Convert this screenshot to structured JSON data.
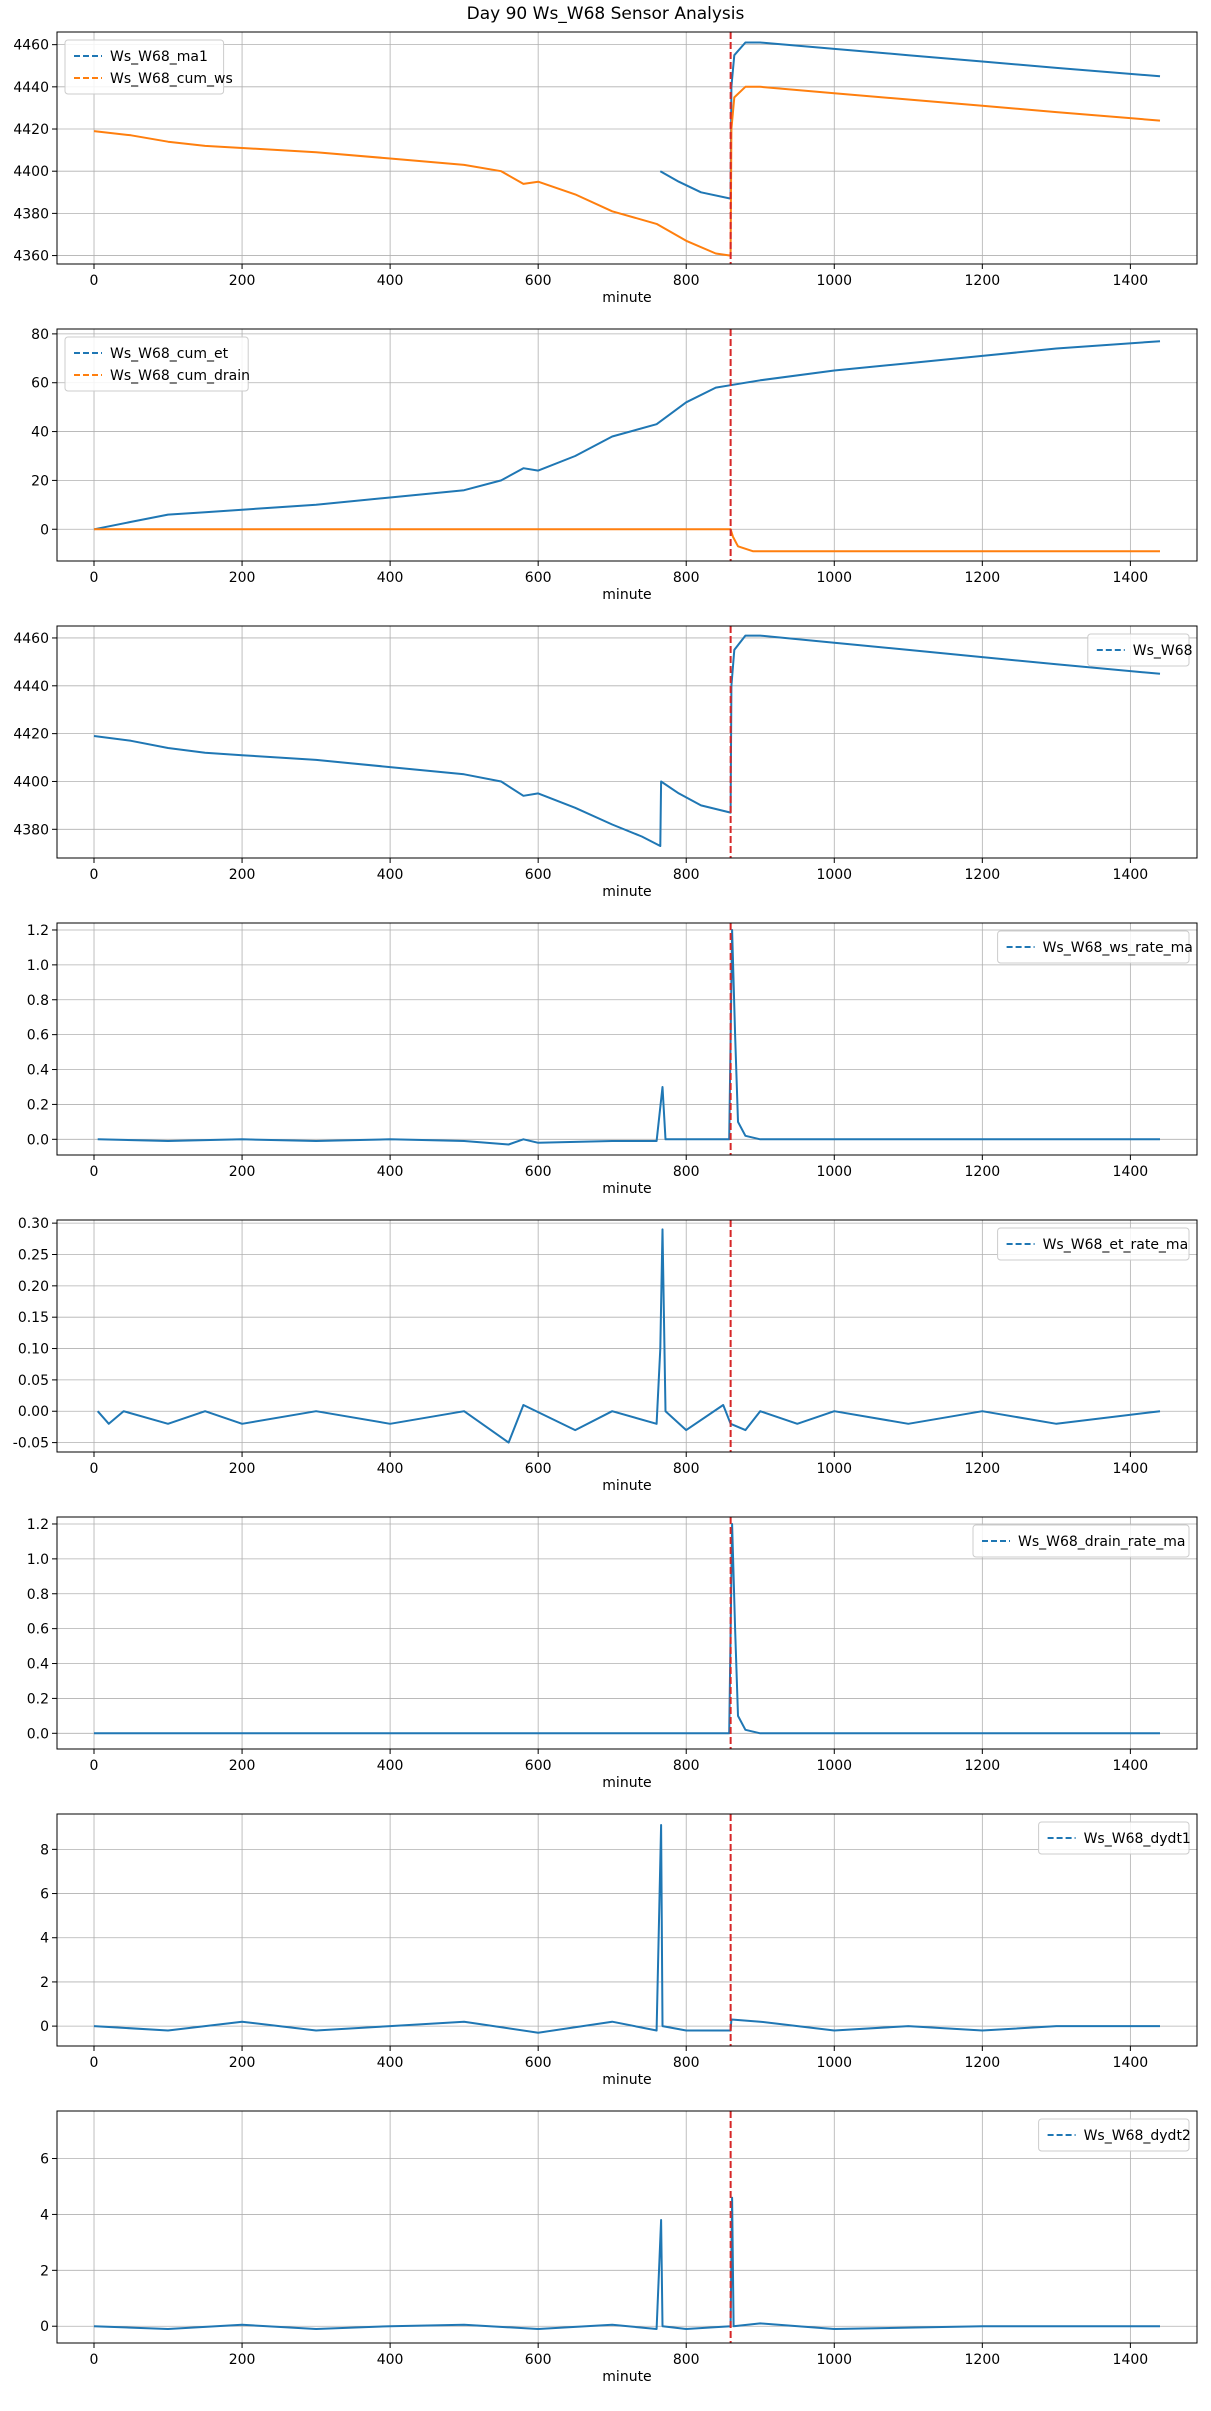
{
  "figure": {
    "title": "Day 90 Ws_W68 Sensor Analysis"
  },
  "colors": {
    "blue": "#1f77b4",
    "orange": "#ff7f0e",
    "red": "#d62728",
    "grid": "#b0b0b0"
  },
  "chart_data": [
    {
      "type": "line",
      "xlabel": "minute",
      "xlim": [
        -50,
        1490
      ],
      "ylim": [
        4356,
        4466
      ],
      "xticks": [
        0,
        200,
        400,
        600,
        800,
        1000,
        1200,
        1400
      ],
      "yticks": [
        4360,
        4380,
        4400,
        4420,
        4440,
        4460
      ],
      "grid": true,
      "legend_position": "upper-left",
      "vline_x": 860,
      "series": [
        {
          "name": "Ws_W68_ma1",
          "color": "blue",
          "points": [
            [
              765,
              4400
            ],
            [
              790,
              4395
            ],
            [
              820,
              4390
            ],
            [
              860,
              4387
            ],
            [
              861,
              4440
            ],
            [
              865,
              4455
            ],
            [
              880,
              4461
            ],
            [
              900,
              4461
            ],
            [
              1000,
              4458
            ],
            [
              1100,
              4455
            ],
            [
              1200,
              4452
            ],
            [
              1300,
              4449
            ],
            [
              1440,
              4445
            ]
          ]
        },
        {
          "name": "Ws_W68_cum_ws",
          "color": "orange",
          "points": [
            [
              0,
              4419
            ],
            [
              50,
              4417
            ],
            [
              100,
              4414
            ],
            [
              150,
              4412
            ],
            [
              200,
              4411
            ],
            [
              300,
              4409
            ],
            [
              400,
              4406
            ],
            [
              500,
              4403
            ],
            [
              550,
              4400
            ],
            [
              580,
              4394
            ],
            [
              600,
              4395
            ],
            [
              650,
              4389
            ],
            [
              700,
              4381
            ],
            [
              760,
              4375
            ],
            [
              800,
              4367
            ],
            [
              840,
              4361
            ],
            [
              860,
              4360
            ],
            [
              861,
              4420
            ],
            [
              865,
              4435
            ],
            [
              880,
              4440
            ],
            [
              900,
              4440
            ],
            [
              1000,
              4437
            ],
            [
              1100,
              4434
            ],
            [
              1200,
              4431
            ],
            [
              1300,
              4428
            ],
            [
              1440,
              4424
            ]
          ]
        }
      ]
    },
    {
      "type": "line",
      "xlabel": "minute",
      "xlim": [
        -50,
        1490
      ],
      "ylim": [
        -13,
        82
      ],
      "xticks": [
        0,
        200,
        400,
        600,
        800,
        1000,
        1200,
        1400
      ],
      "yticks": [
        0,
        20,
        40,
        60,
        80
      ],
      "grid": true,
      "legend_position": "upper-left",
      "vline_x": 860,
      "series": [
        {
          "name": "Ws_W68_cum_et",
          "color": "blue",
          "points": [
            [
              0,
              0
            ],
            [
              50,
              3
            ],
            [
              100,
              6
            ],
            [
              150,
              7
            ],
            [
              200,
              8
            ],
            [
              300,
              10
            ],
            [
              400,
              13
            ],
            [
              500,
              16
            ],
            [
              550,
              20
            ],
            [
              580,
              25
            ],
            [
              600,
              24
            ],
            [
              650,
              30
            ],
            [
              700,
              38
            ],
            [
              760,
              43
            ],
            [
              800,
              52
            ],
            [
              840,
              58
            ],
            [
              860,
              59
            ],
            [
              900,
              61
            ],
            [
              1000,
              65
            ],
            [
              1100,
              68
            ],
            [
              1200,
              71
            ],
            [
              1300,
              74
            ],
            [
              1440,
              77
            ]
          ]
        },
        {
          "name": "Ws_W68_cum_drain",
          "color": "orange",
          "points": [
            [
              0,
              0
            ],
            [
              860,
              0
            ],
            [
              863,
              -3
            ],
            [
              870,
              -7
            ],
            [
              890,
              -9
            ],
            [
              1000,
              -9
            ],
            [
              1440,
              -9
            ]
          ]
        }
      ]
    },
    {
      "type": "line",
      "xlabel": "minute",
      "xlim": [
        -50,
        1490
      ],
      "ylim": [
        4368,
        4465
      ],
      "xticks": [
        0,
        200,
        400,
        600,
        800,
        1000,
        1200,
        1400
      ],
      "yticks": [
        4380,
        4400,
        4420,
        4440,
        4460
      ],
      "grid": true,
      "legend_position": "upper-right",
      "vline_x": 860,
      "series": [
        {
          "name": "Ws_W68",
          "color": "blue",
          "points": [
            [
              0,
              4419
            ],
            [
              50,
              4417
            ],
            [
              100,
              4414
            ],
            [
              150,
              4412
            ],
            [
              200,
              4411
            ],
            [
              300,
              4409
            ],
            [
              400,
              4406
            ],
            [
              500,
              4403
            ],
            [
              550,
              4400
            ],
            [
              580,
              4394
            ],
            [
              600,
              4395
            ],
            [
              650,
              4389
            ],
            [
              700,
              4382
            ],
            [
              740,
              4377
            ],
            [
              765,
              4373
            ],
            [
              766,
              4400
            ],
            [
              790,
              4395
            ],
            [
              820,
              4390
            ],
            [
              860,
              4387
            ],
            [
              861,
              4440
            ],
            [
              865,
              4455
            ],
            [
              880,
              4461
            ],
            [
              900,
              4461
            ],
            [
              1000,
              4458
            ],
            [
              1100,
              4455
            ],
            [
              1200,
              4452
            ],
            [
              1300,
              4449
            ],
            [
              1440,
              4445
            ]
          ]
        }
      ]
    },
    {
      "type": "line",
      "xlabel": "minute",
      "xlim": [
        -50,
        1490
      ],
      "ylim": [
        -0.09,
        1.24
      ],
      "xticks": [
        0,
        200,
        400,
        600,
        800,
        1000,
        1200,
        1400
      ],
      "yticks": [
        0.0,
        0.2,
        0.4,
        0.6,
        0.8,
        1.0,
        1.2
      ],
      "grid": true,
      "legend_position": "upper-right",
      "vline_x": 860,
      "series": [
        {
          "name": "Ws_W68_ws_rate_ma",
          "color": "blue",
          "points": [
            [
              5,
              0
            ],
            [
              100,
              -0.01
            ],
            [
              200,
              0
            ],
            [
              300,
              -0.01
            ],
            [
              400,
              0
            ],
            [
              500,
              -0.01
            ],
            [
              560,
              -0.03
            ],
            [
              580,
              0
            ],
            [
              600,
              -0.02
            ],
            [
              700,
              -0.01
            ],
            [
              760,
              -0.01
            ],
            [
              768,
              0.3
            ],
            [
              772,
              0
            ],
            [
              850,
              0
            ],
            [
              858,
              0
            ],
            [
              862,
              1.2
            ],
            [
              866,
              0.6
            ],
            [
              870,
              0.1
            ],
            [
              880,
              0.02
            ],
            [
              900,
              0
            ],
            [
              1000,
              0
            ],
            [
              1200,
              0
            ],
            [
              1440,
              0
            ]
          ]
        }
      ]
    },
    {
      "type": "line",
      "xlabel": "minute",
      "xlim": [
        -50,
        1490
      ],
      "ylim": [
        -0.065,
        0.305
      ],
      "xticks": [
        0,
        200,
        400,
        600,
        800,
        1000,
        1200,
        1400
      ],
      "yticks": [
        -0.05,
        0.0,
        0.05,
        0.1,
        0.15,
        0.2,
        0.25,
        0.3
      ],
      "grid": true,
      "legend_position": "upper-right",
      "vline_x": 860,
      "series": [
        {
          "name": "Ws_W68_et_rate_ma",
          "color": "blue",
          "points": [
            [
              5,
              0
            ],
            [
              20,
              -0.02
            ],
            [
              40,
              0
            ],
            [
              100,
              -0.02
            ],
            [
              150,
              0
            ],
            [
              200,
              -0.02
            ],
            [
              300,
              0
            ],
            [
              400,
              -0.02
            ],
            [
              500,
              0
            ],
            [
              560,
              -0.05
            ],
            [
              580,
              0.01
            ],
            [
              650,
              -0.03
            ],
            [
              700,
              0
            ],
            [
              760,
              -0.02
            ],
            [
              765,
              0.1
            ],
            [
              768,
              0.29
            ],
            [
              772,
              0
            ],
            [
              800,
              -0.03
            ],
            [
              850,
              0.01
            ],
            [
              860,
              -0.02
            ],
            [
              880,
              -0.03
            ],
            [
              900,
              0
            ],
            [
              950,
              -0.02
            ],
            [
              1000,
              0
            ],
            [
              1100,
              -0.02
            ],
            [
              1200,
              0
            ],
            [
              1300,
              -0.02
            ],
            [
              1440,
              0
            ]
          ]
        }
      ]
    },
    {
      "type": "line",
      "xlabel": "minute",
      "xlim": [
        -50,
        1490
      ],
      "ylim": [
        -0.09,
        1.24
      ],
      "xticks": [
        0,
        200,
        400,
        600,
        800,
        1000,
        1200,
        1400
      ],
      "yticks": [
        0.0,
        0.2,
        0.4,
        0.6,
        0.8,
        1.0,
        1.2
      ],
      "grid": true,
      "legend_position": "upper-right",
      "vline_x": 860,
      "series": [
        {
          "name": "Ws_W68_drain_rate_ma",
          "color": "blue",
          "points": [
            [
              0,
              0
            ],
            [
              858,
              0
            ],
            [
              862,
              1.2
            ],
            [
              866,
              0.6
            ],
            [
              870,
              0.1
            ],
            [
              880,
              0.02
            ],
            [
              900,
              0
            ],
            [
              1440,
              0
            ]
          ]
        }
      ]
    },
    {
      "type": "line",
      "xlabel": "minute",
      "xlim": [
        -50,
        1490
      ],
      "ylim": [
        -0.9,
        9.6
      ],
      "xticks": [
        0,
        200,
        400,
        600,
        800,
        1000,
        1200,
        1400
      ],
      "yticks": [
        0,
        2,
        4,
        6,
        8
      ],
      "grid": true,
      "legend_position": "upper-right",
      "vline_x": 860,
      "series": [
        {
          "name": "Ws_W68_dydt1",
          "color": "blue",
          "points": [
            [
              0,
              0
            ],
            [
              100,
              -0.2
            ],
            [
              200,
              0.2
            ],
            [
              300,
              -0.2
            ],
            [
              400,
              0
            ],
            [
              500,
              0.2
            ],
            [
              600,
              -0.3
            ],
            [
              700,
              0.2
            ],
            [
              760,
              -0.2
            ],
            [
              766,
              9.1
            ],
            [
              768,
              0
            ],
            [
              800,
              -0.2
            ],
            [
              860,
              -0.2
            ],
            [
              861,
              0.3
            ],
            [
              900,
              0.2
            ],
            [
              1000,
              -0.2
            ],
            [
              1100,
              0
            ],
            [
              1200,
              -0.2
            ],
            [
              1300,
              0
            ],
            [
              1440,
              0
            ]
          ]
        }
      ]
    },
    {
      "type": "line",
      "xlabel": "minute",
      "xlim": [
        -50,
        1490
      ],
      "ylim": [
        -0.6,
        7.7
      ],
      "xticks": [
        0,
        200,
        400,
        600,
        800,
        1000,
        1200,
        1400
      ],
      "yticks": [
        0,
        2,
        4,
        6
      ],
      "grid": true,
      "legend_position": "upper-right",
      "vline_x": 860,
      "series": [
        {
          "name": "Ws_W68_dydt2",
          "color": "blue",
          "points": [
            [
              0,
              0
            ],
            [
              100,
              -0.1
            ],
            [
              200,
              0.05
            ],
            [
              300,
              -0.1
            ],
            [
              400,
              0
            ],
            [
              500,
              0.05
            ],
            [
              600,
              -0.1
            ],
            [
              700,
              0.05
            ],
            [
              760,
              -0.1
            ],
            [
              766,
              3.8
            ],
            [
              768,
              0
            ],
            [
              800,
              -0.1
            ],
            [
              860,
              0
            ],
            [
              862,
              4.6
            ],
            [
              864,
              0
            ],
            [
              900,
              0.1
            ],
            [
              1000,
              -0.1
            ],
            [
              1200,
              0
            ],
            [
              1440,
              0
            ]
          ]
        }
      ]
    }
  ]
}
